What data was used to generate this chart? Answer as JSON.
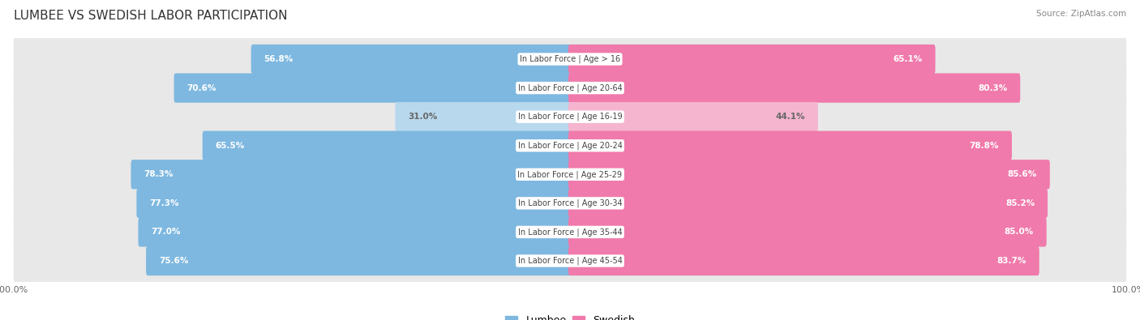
{
  "title": "LUMBEE VS SWEDISH LABOR PARTICIPATION",
  "source": "Source: ZipAtlas.com",
  "categories": [
    "In Labor Force | Age > 16",
    "In Labor Force | Age 20-64",
    "In Labor Force | Age 16-19",
    "In Labor Force | Age 20-24",
    "In Labor Force | Age 25-29",
    "In Labor Force | Age 30-34",
    "In Labor Force | Age 35-44",
    "In Labor Force | Age 45-54"
  ],
  "lumbee_values": [
    56.8,
    70.6,
    31.0,
    65.5,
    78.3,
    77.3,
    77.0,
    75.6
  ],
  "swedish_values": [
    65.1,
    80.3,
    44.1,
    78.8,
    85.6,
    85.2,
    85.0,
    83.7
  ],
  "lumbee_color": "#7eb8e0",
  "swedish_color": "#f07aab",
  "lumbee_color_light": "#b8d8ee",
  "swedish_color_light": "#f5b5cf",
  "row_bg_color": "#e8e8e8",
  "title_fontsize": 11,
  "label_fontsize": 7.5,
  "tick_fontsize": 8,
  "legend_fontsize": 9,
  "bar_height": 0.72,
  "bg_color": "#ffffff",
  "value_color_white": "#ffffff",
  "value_color_dark": "#666666",
  "center_label_color": "#444444"
}
